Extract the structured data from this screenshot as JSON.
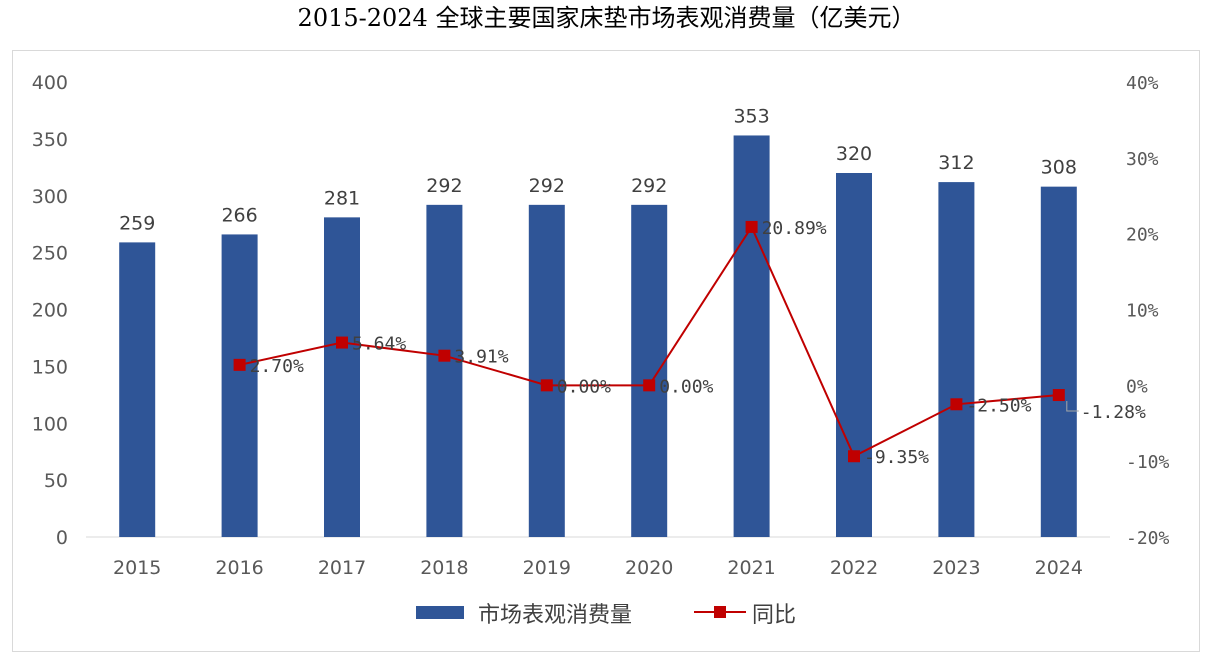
{
  "chart_data": {
    "type": "bar",
    "title": "2015-2024 全球主要国家床垫市场表观消费量（亿美元）",
    "categories": [
      "2015",
      "2016",
      "2017",
      "2018",
      "2019",
      "2020",
      "2021",
      "2022",
      "2023",
      "2024"
    ],
    "series": [
      {
        "name": "市场表观消费量",
        "type": "bar",
        "axis": "left",
        "color": "#2F5597",
        "values": [
          259,
          266,
          281,
          292,
          292,
          292,
          353,
          320,
          312,
          308
        ],
        "labels": [
          "259",
          "266",
          "281",
          "292",
          "292",
          "292",
          "353",
          "320",
          "312",
          "308"
        ]
      },
      {
        "name": "同比",
        "type": "line",
        "axis": "right",
        "color": "#C00000",
        "values": [
          null,
          2.7,
          5.64,
          3.91,
          0.0,
          0.0,
          20.89,
          -9.35,
          -2.5,
          -1.28
        ],
        "labels": [
          null,
          "2.70%",
          "5.64%",
          "3.91%",
          "0.00%",
          "0.00%",
          "20.89%",
          "-9.35%",
          "-2.50%",
          "-1.28%"
        ]
      }
    ],
    "y_left": {
      "min": 0,
      "max": 400,
      "step": 50,
      "ticks": [
        "0",
        "50",
        "100",
        "150",
        "200",
        "250",
        "300",
        "350",
        "400"
      ]
    },
    "y_right": {
      "min": -20,
      "max": 40,
      "step": 10,
      "ticks": [
        "-20%",
        "-10%",
        "0%",
        "10%",
        "20%",
        "30%",
        "40%"
      ]
    },
    "grid": false,
    "legend": "bottom-center"
  }
}
